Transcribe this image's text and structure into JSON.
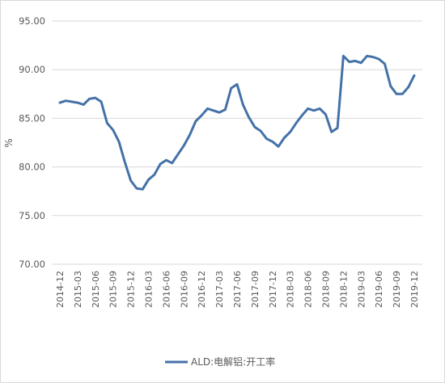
{
  "chart_data": {
    "type": "line",
    "ylabel": "%",
    "ylim": [
      70,
      95
    ],
    "yticks": [
      "70.00",
      "75.00",
      "80.00",
      "85.00",
      "90.00",
      "95.00"
    ],
    "grid": "horizontal",
    "legend_position": "bottom",
    "x": [
      "2014-12",
      "2015-01",
      "2015-02",
      "2015-03",
      "2015-04",
      "2015-05",
      "2015-06",
      "2015-07",
      "2015-08",
      "2015-09",
      "2015-10",
      "2015-11",
      "2015-12",
      "2016-01",
      "2016-02",
      "2016-03",
      "2016-04",
      "2016-05",
      "2016-06",
      "2016-07",
      "2016-08",
      "2016-09",
      "2016-10",
      "2016-11",
      "2016-12",
      "2017-01",
      "2017-02",
      "2017-03",
      "2017-04",
      "2017-05",
      "2017-06",
      "2017-07",
      "2017-08",
      "2017-09",
      "2017-10",
      "2017-11",
      "2017-12",
      "2018-01",
      "2018-02",
      "2018-03",
      "2018-04",
      "2018-05",
      "2018-06",
      "2018-07",
      "2018-08",
      "2018-09",
      "2018-10",
      "2018-11",
      "2018-12",
      "2019-01",
      "2019-02",
      "2019-03",
      "2019-04",
      "2019-05",
      "2019-06",
      "2019-07",
      "2019-08",
      "2019-09",
      "2019-10",
      "2019-11",
      "2019-12"
    ],
    "xticks": [
      "2014-12",
      "2015-03",
      "2015-06",
      "2015-09",
      "2015-12",
      "2016-03",
      "2016-06",
      "2016-09",
      "2016-12",
      "2017-03",
      "2017-06",
      "2017-09",
      "2017-12",
      "2018-03",
      "2018-06",
      "2018-09",
      "2018-12",
      "2019-03",
      "2019-06",
      "2019-09",
      "2019-12"
    ],
    "series": [
      {
        "name": "ALD:电解铝:开工率",
        "color": "#4472a8",
        "values": [
          86.6,
          86.8,
          86.7,
          86.6,
          86.4,
          87.0,
          87.1,
          86.7,
          84.5,
          83.8,
          82.6,
          80.5,
          78.6,
          77.8,
          77.7,
          78.7,
          79.2,
          80.3,
          80.7,
          80.4,
          81.3,
          82.2,
          83.3,
          84.7,
          85.3,
          86.0,
          85.8,
          85.6,
          85.9,
          88.1,
          88.5,
          86.4,
          85.1,
          84.1,
          83.7,
          82.9,
          82.6,
          82.1,
          83.0,
          83.6,
          84.5,
          85.3,
          86.0,
          85.8,
          86.0,
          85.4,
          83.6,
          84.0,
          91.4,
          90.8,
          90.9,
          90.7,
          91.4,
          91.3,
          91.1,
          90.6,
          88.3,
          87.5,
          87.5,
          88.2,
          89.4
        ]
      }
    ]
  }
}
